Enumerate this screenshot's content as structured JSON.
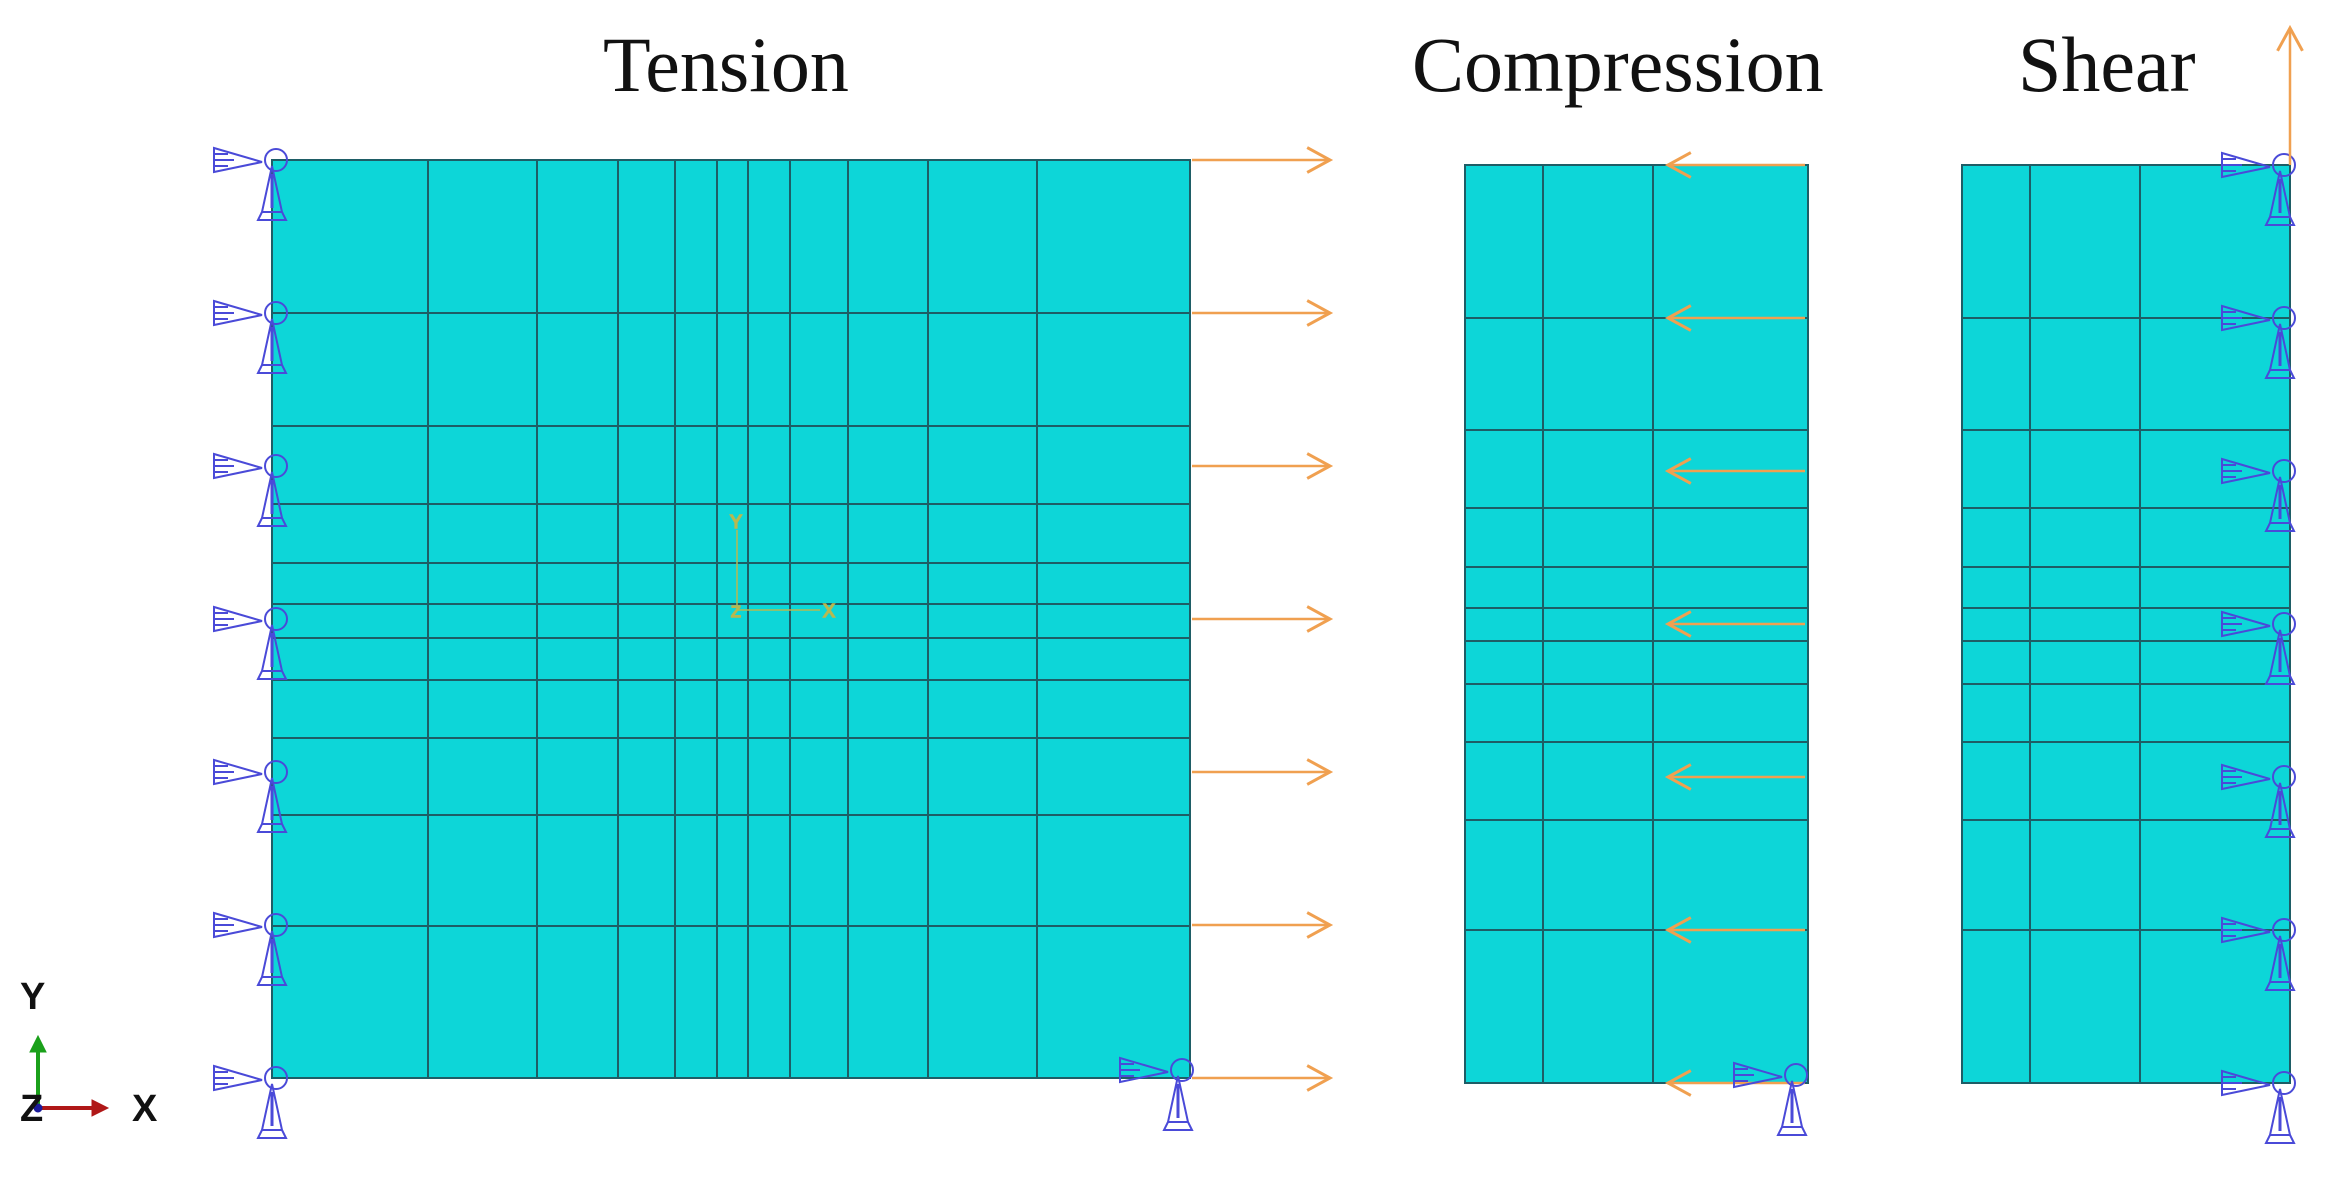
{
  "panels": [
    {
      "id": "tension",
      "title": "Tension",
      "load": "tension-arrows-right"
    },
    {
      "id": "compression",
      "title": "Compression",
      "load": "compression-arrows-left"
    },
    {
      "id": "shear",
      "title": "Shear",
      "load": "shear-arrow-up"
    }
  ],
  "triad": {
    "y_label": "Y",
    "z_label": "Z",
    "x_label": "X"
  },
  "local_axes": {
    "y_label": "Y",
    "x_label": "X",
    "z_label": "Z"
  },
  "colors": {
    "mesh_fill": "#0dd6d8",
    "mesh_line": "#1e5d66",
    "load_arrow": "#f0a050",
    "boundary_condition": "#4a4ad8",
    "triad_x": "#b01818",
    "triad_y": "#1aa01a",
    "triad_z": "#1a1a9a"
  }
}
